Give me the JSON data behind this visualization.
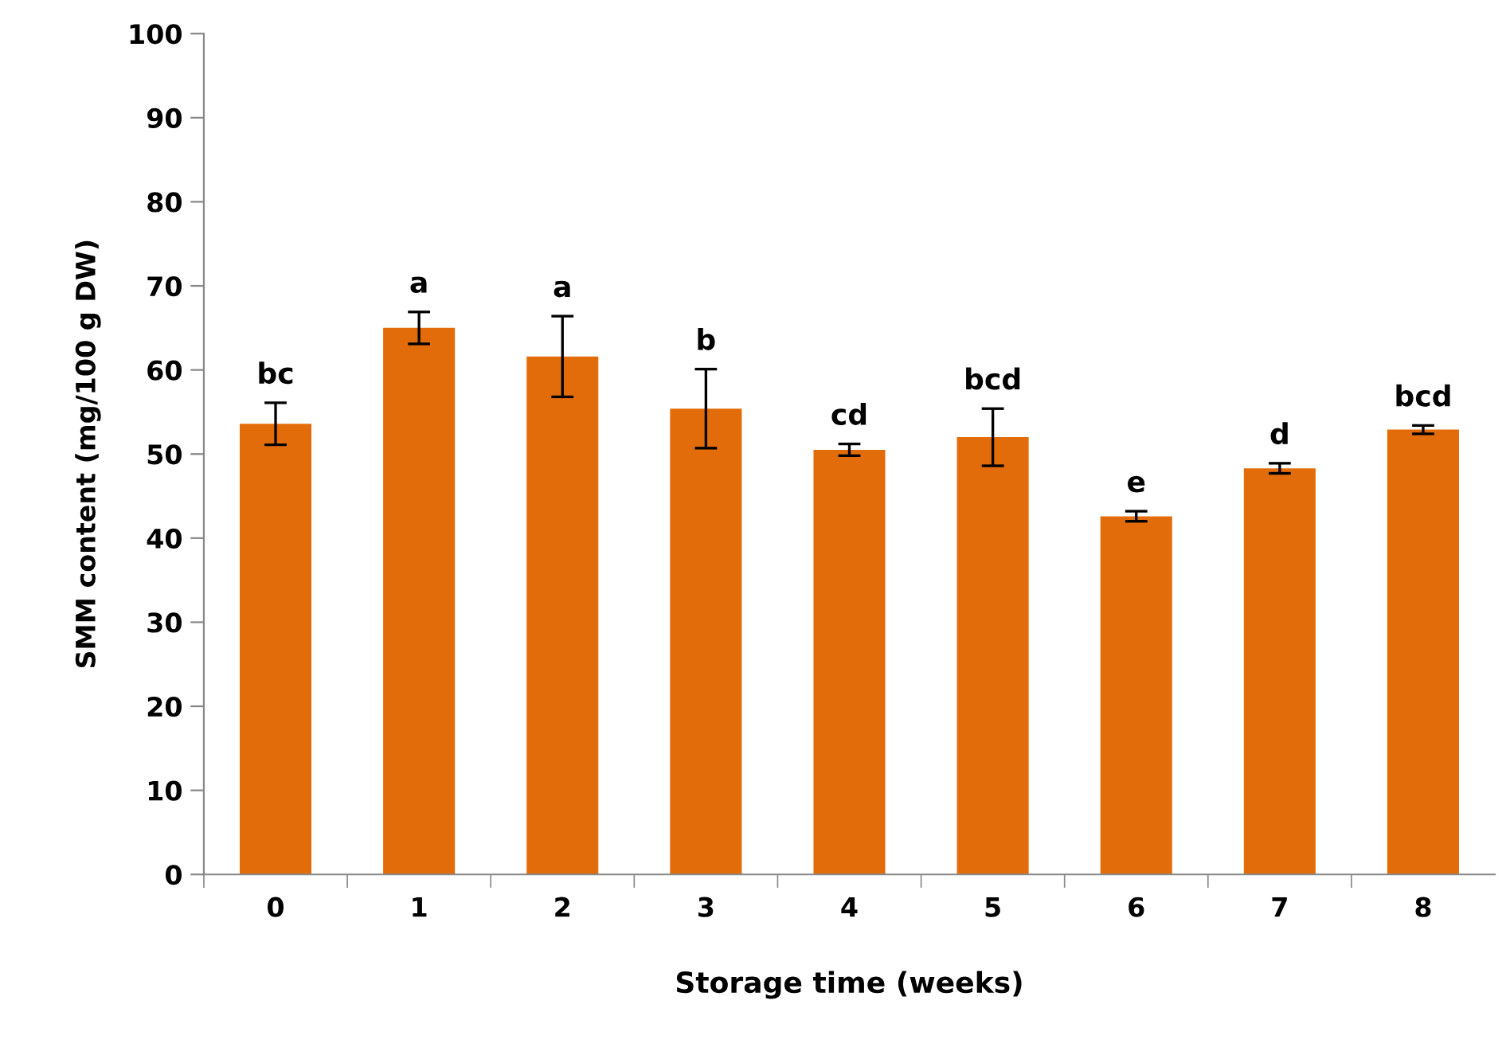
{
  "chart_data": {
    "type": "bar",
    "xlabel": "Storage time (weeks)",
    "ylabel": "SMM content (mg/100 g DW)",
    "categories": [
      "0",
      "1",
      "2",
      "3",
      "4",
      "5",
      "6",
      "7",
      "8"
    ],
    "values": [
      53.6,
      65.0,
      61.6,
      55.4,
      50.5,
      52.0,
      42.6,
      48.3,
      52.9
    ],
    "errors": [
      2.5,
      1.9,
      4.8,
      4.7,
      0.7,
      3.4,
      0.6,
      0.6,
      0.5
    ],
    "color": "#e36c0a",
    "ylim": [
      0,
      100
    ],
    "yticks": [
      0,
      10,
      20,
      30,
      40,
      50,
      60,
      70,
      80,
      90,
      100
    ],
    "grid": false,
    "annotations": [
      {
        "text": "bc",
        "x": "0",
        "y": 56.1
      },
      {
        "text": "a",
        "x": "1",
        "y": 66.9
      },
      {
        "text": "a",
        "x": "2",
        "y": 66.4
      },
      {
        "text": "b",
        "x": "3",
        "y": 60.1
      },
      {
        "text": "cd",
        "x": "4",
        "y": 51.2
      },
      {
        "text": "bcd",
        "x": "5",
        "y": 55.4
      },
      {
        "text": "e",
        "x": "6",
        "y": 43.2
      },
      {
        "text": "d",
        "x": "7",
        "y": 48.9
      },
      {
        "text": "bcd",
        "x": "8",
        "y": 53.4
      }
    ]
  }
}
